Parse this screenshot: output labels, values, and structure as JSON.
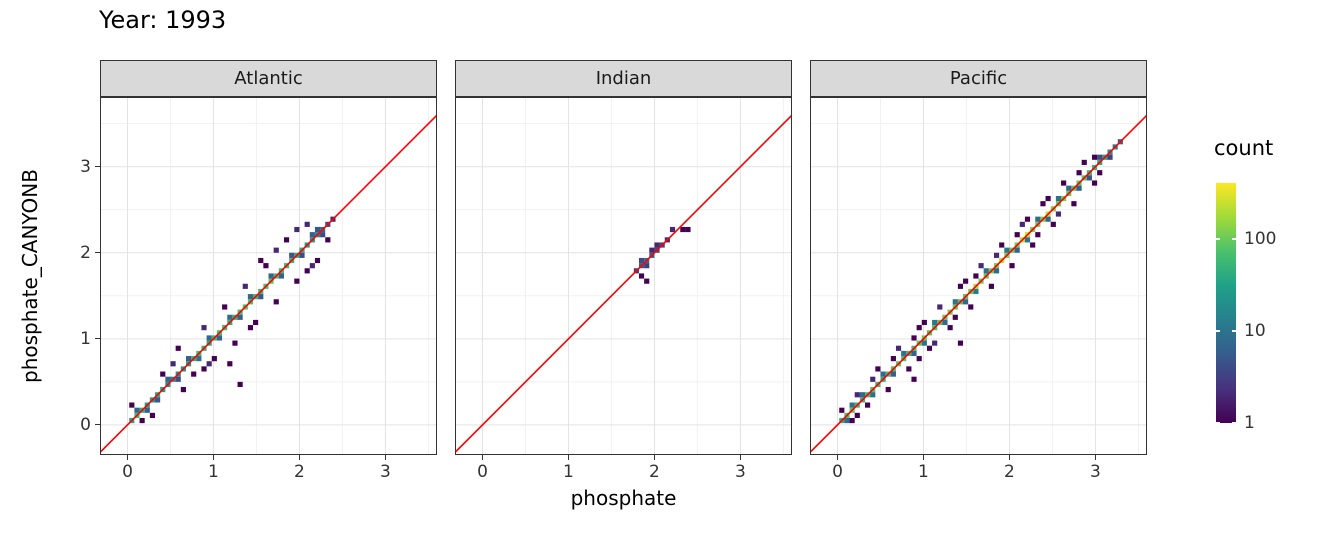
{
  "title": "Year: 1993",
  "chart_data": {
    "type": "heatmap",
    "subtype": "bin2d",
    "title": "Year: 1993",
    "xlabel": "phosphate",
    "ylabel": "phosphate_CANYONB",
    "x_ticks": [
      0,
      1,
      2,
      3
    ],
    "y_ticks": [
      0,
      1,
      2,
      3
    ],
    "x_domain": [
      -0.32,
      3.6
    ],
    "y_domain": [
      -0.35,
      3.81
    ],
    "bin_size": 0.06,
    "grid": true,
    "reference_line": {
      "slope": 1,
      "intercept": 0,
      "color": "#ff0000"
    },
    "legend": {
      "title": "count",
      "ticks": [
        1,
        10,
        100
      ],
      "domain": [
        1,
        400
      ],
      "position": "right",
      "scale": "log10"
    },
    "viridis_stops": [
      "#440154",
      "#46327e",
      "#365c8d",
      "#277f8e",
      "#1fa187",
      "#4ac16d",
      "#a0da39",
      "#fde725"
    ],
    "grid_major_color": "#e3e3e3",
    "grid_minor_color": "#f1f1f1",
    "strip_bg": "#d9d9d9",
    "panel_border": "#333333",
    "facets": [
      {
        "label": "Atlantic",
        "points": [
          [
            0.05,
            0.05,
            35
          ],
          [
            0.11,
            0.11,
            60
          ],
          [
            0.17,
            0.17,
            45
          ],
          [
            0.23,
            0.23,
            30
          ],
          [
            0.29,
            0.29,
            25
          ],
          [
            0.35,
            0.35,
            40
          ],
          [
            0.41,
            0.41,
            30
          ],
          [
            0.47,
            0.47,
            20
          ],
          [
            0.53,
            0.53,
            15
          ],
          [
            0.59,
            0.59,
            18
          ],
          [
            0.65,
            0.65,
            25
          ],
          [
            0.71,
            0.71,
            30
          ],
          [
            0.77,
            0.77,
            45
          ],
          [
            0.83,
            0.83,
            60
          ],
          [
            0.89,
            0.89,
            50
          ],
          [
            0.95,
            0.95,
            40
          ],
          [
            1.01,
            1.01,
            55
          ],
          [
            1.07,
            1.07,
            70
          ],
          [
            1.13,
            1.13,
            60
          ],
          [
            1.19,
            1.19,
            45
          ],
          [
            1.25,
            1.25,
            50
          ],
          [
            1.31,
            1.31,
            65
          ],
          [
            1.37,
            1.37,
            80
          ],
          [
            1.43,
            1.43,
            70
          ],
          [
            1.49,
            1.49,
            55
          ],
          [
            1.55,
            1.55,
            60
          ],
          [
            1.61,
            1.61,
            75
          ],
          [
            1.67,
            1.67,
            85
          ],
          [
            1.73,
            1.73,
            70
          ],
          [
            1.79,
            1.79,
            60
          ],
          [
            1.85,
            1.85,
            60
          ],
          [
            1.91,
            1.91,
            55
          ],
          [
            1.97,
            1.97,
            45
          ],
          [
            2.03,
            2.03,
            40
          ],
          [
            2.09,
            2.09,
            30
          ],
          [
            2.15,
            2.15,
            25
          ],
          [
            2.21,
            2.21,
            15
          ],
          [
            2.27,
            2.27,
            8
          ],
          [
            2.33,
            2.33,
            4
          ],
          [
            2.39,
            2.39,
            2
          ],
          [
            0.11,
            0.17,
            8
          ],
          [
            0.23,
            0.17,
            6
          ],
          [
            0.35,
            0.29,
            5
          ],
          [
            0.47,
            0.53,
            7
          ],
          [
            0.59,
            0.53,
            4
          ],
          [
            0.71,
            0.77,
            6
          ],
          [
            0.83,
            0.77,
            9
          ],
          [
            0.95,
            1.01,
            8
          ],
          [
            1.07,
            1.01,
            7
          ],
          [
            1.19,
            1.25,
            9
          ],
          [
            1.31,
            1.25,
            6
          ],
          [
            1.43,
            1.49,
            8
          ],
          [
            1.55,
            1.49,
            5
          ],
          [
            1.67,
            1.73,
            7
          ],
          [
            1.79,
            1.73,
            6
          ],
          [
            1.91,
            1.97,
            5
          ],
          [
            2.03,
            1.97,
            4
          ],
          [
            2.15,
            2.21,
            6
          ],
          [
            2.21,
            2.27,
            5
          ],
          [
            2.27,
            2.21,
            4
          ],
          [
            0.05,
            0.23,
            1
          ],
          [
            0.17,
            0.05,
            1
          ],
          [
            0.29,
            0.11,
            1
          ],
          [
            0.41,
            0.59,
            1
          ],
          [
            0.53,
            0.71,
            2
          ],
          [
            0.65,
            0.41,
            1
          ],
          [
            0.77,
            0.59,
            1
          ],
          [
            0.89,
            0.65,
            1
          ],
          [
            0.89,
            1.13,
            2
          ],
          [
            1.01,
            0.77,
            1
          ],
          [
            1.13,
            1.37,
            1
          ],
          [
            1.25,
            0.95,
            1
          ],
          [
            1.37,
            1.61,
            2
          ],
          [
            1.49,
            1.19,
            1
          ],
          [
            1.61,
            1.85,
            1
          ],
          [
            1.73,
            1.43,
            1
          ],
          [
            1.73,
            2.03,
            2
          ],
          [
            1.85,
            2.15,
            1
          ],
          [
            1.97,
            1.67,
            1
          ],
          [
            1.97,
            2.27,
            2
          ],
          [
            2.09,
            1.79,
            1
          ],
          [
            2.09,
            2.33,
            2
          ],
          [
            2.21,
            1.91,
            1
          ],
          [
            2.33,
            2.15,
            1
          ],
          [
            1.19,
            0.71,
            1
          ],
          [
            0.59,
            0.89,
            1
          ],
          [
            1.55,
            1.91,
            1
          ],
          [
            2.15,
            1.85,
            2
          ],
          [
            1.43,
            1.13,
            1
          ],
          [
            0.95,
            0.71,
            2
          ],
          [
            1.31,
            0.47,
            1
          ]
        ]
      },
      {
        "label": "Indian",
        "points": [
          [
            1.79,
            1.79,
            3
          ],
          [
            1.85,
            1.85,
            6
          ],
          [
            1.91,
            1.91,
            8
          ],
          [
            1.97,
            1.97,
            6
          ],
          [
            2.03,
            2.03,
            4
          ],
          [
            2.09,
            2.09,
            3
          ],
          [
            2.15,
            2.15,
            2
          ],
          [
            2.21,
            2.27,
            2
          ],
          [
            2.33,
            2.27,
            1
          ],
          [
            1.85,
            1.91,
            4
          ],
          [
            1.91,
            1.85,
            3
          ],
          [
            1.97,
            2.03,
            2
          ],
          [
            1.85,
            1.73,
            1
          ],
          [
            1.91,
            1.67,
            1
          ],
          [
            2.03,
            2.09,
            2
          ],
          [
            2.39,
            2.27,
            1
          ]
        ]
      },
      {
        "label": "Pacific",
        "points": [
          [
            0.05,
            0.05,
            45
          ],
          [
            0.11,
            0.11,
            70
          ],
          [
            0.17,
            0.17,
            90
          ],
          [
            0.23,
            0.23,
            60
          ],
          [
            0.29,
            0.29,
            50
          ],
          [
            0.35,
            0.35,
            65
          ],
          [
            0.41,
            0.41,
            80
          ],
          [
            0.47,
            0.47,
            55
          ],
          [
            0.53,
            0.53,
            45
          ],
          [
            0.59,
            0.59,
            60
          ],
          [
            0.65,
            0.65,
            75
          ],
          [
            0.71,
            0.71,
            90
          ],
          [
            0.77,
            0.77,
            70
          ],
          [
            0.83,
            0.83,
            55
          ],
          [
            0.89,
            0.89,
            65
          ],
          [
            0.95,
            0.95,
            85
          ],
          [
            1.01,
            1.01,
            100
          ],
          [
            1.07,
            1.07,
            80
          ],
          [
            1.13,
            1.13,
            70
          ],
          [
            1.19,
            1.19,
            85
          ],
          [
            1.25,
            1.25,
            95
          ],
          [
            1.31,
            1.31,
            110
          ],
          [
            1.37,
            1.37,
            90
          ],
          [
            1.43,
            1.43,
            75
          ],
          [
            1.49,
            1.49,
            85
          ],
          [
            1.55,
            1.55,
            100
          ],
          [
            1.61,
            1.61,
            200
          ],
          [
            1.67,
            1.67,
            110
          ],
          [
            1.73,
            1.73,
            95
          ],
          [
            1.79,
            1.79,
            105
          ],
          [
            1.85,
            1.85,
            120
          ],
          [
            1.91,
            1.91,
            220
          ],
          [
            1.97,
            1.97,
            115
          ],
          [
            2.03,
            2.03,
            100
          ],
          [
            2.09,
            2.09,
            110
          ],
          [
            2.15,
            2.15,
            210
          ],
          [
            2.21,
            2.21,
            260
          ],
          [
            2.27,
            2.27,
            120
          ],
          [
            2.33,
            2.33,
            105
          ],
          [
            2.39,
            2.39,
            115
          ],
          [
            2.45,
            2.45,
            240
          ],
          [
            2.51,
            2.51,
            120
          ],
          [
            2.57,
            2.57,
            100
          ],
          [
            2.63,
            2.63,
            110
          ],
          [
            2.69,
            2.69,
            95
          ],
          [
            2.75,
            2.75,
            85
          ],
          [
            2.81,
            2.81,
            90
          ],
          [
            2.87,
            2.87,
            75
          ],
          [
            2.93,
            2.93,
            60
          ],
          [
            2.99,
            2.99,
            50
          ],
          [
            3.05,
            3.05,
            40
          ],
          [
            3.11,
            3.11,
            30
          ],
          [
            3.17,
            3.17,
            20
          ],
          [
            3.23,
            3.23,
            12
          ],
          [
            3.29,
            3.29,
            6
          ],
          [
            0.11,
            0.05,
            8
          ],
          [
            0.17,
            0.23,
            10
          ],
          [
            0.29,
            0.35,
            7
          ],
          [
            0.41,
            0.35,
            9
          ],
          [
            0.53,
            0.59,
            8
          ],
          [
            0.65,
            0.59,
            6
          ],
          [
            0.77,
            0.83,
            10
          ],
          [
            0.89,
            0.83,
            7
          ],
          [
            1.01,
            0.95,
            9
          ],
          [
            1.13,
            1.19,
            11
          ],
          [
            1.25,
            1.19,
            8
          ],
          [
            1.37,
            1.43,
            10
          ],
          [
            1.49,
            1.43,
            7
          ],
          [
            1.61,
            1.55,
            12
          ],
          [
            1.73,
            1.79,
            9
          ],
          [
            1.85,
            1.79,
            8
          ],
          [
            1.97,
            2.03,
            11
          ],
          [
            2.09,
            2.03,
            7
          ],
          [
            2.21,
            2.15,
            10
          ],
          [
            2.33,
            2.39,
            9
          ],
          [
            2.45,
            2.39,
            8
          ],
          [
            2.57,
            2.63,
            10
          ],
          [
            2.69,
            2.75,
            7
          ],
          [
            2.81,
            2.75,
            6
          ],
          [
            2.93,
            2.87,
            5
          ],
          [
            3.05,
            3.11,
            4
          ],
          [
            3.17,
            3.11,
            3
          ],
          [
            0.05,
            0.17,
            1
          ],
          [
            0.17,
            0.05,
            1
          ],
          [
            0.23,
            0.35,
            2
          ],
          [
            0.35,
            0.23,
            1
          ],
          [
            0.47,
            0.65,
            1
          ],
          [
            0.59,
            0.41,
            1
          ],
          [
            0.71,
            0.89,
            2
          ],
          [
            0.83,
            0.65,
            1
          ],
          [
            0.95,
            1.13,
            1
          ],
          [
            1.07,
            0.89,
            1
          ],
          [
            1.19,
            1.37,
            2
          ],
          [
            1.31,
            1.13,
            1
          ],
          [
            1.43,
            1.61,
            1
          ],
          [
            1.55,
            1.37,
            1
          ],
          [
            1.67,
            1.85,
            2
          ],
          [
            1.79,
            1.61,
            1
          ],
          [
            1.91,
            2.09,
            1
          ],
          [
            2.03,
            1.85,
            1
          ],
          [
            2.15,
            2.33,
            2
          ],
          [
            2.27,
            2.09,
            1
          ],
          [
            2.39,
            2.57,
            1
          ],
          [
            2.51,
            2.33,
            1
          ],
          [
            2.63,
            2.81,
            1
          ],
          [
            2.75,
            2.57,
            1
          ],
          [
            2.87,
            3.05,
            1
          ],
          [
            2.99,
            2.81,
            1
          ],
          [
            0.41,
            0.53,
            2
          ],
          [
            0.65,
            0.77,
            1
          ],
          [
            0.89,
            1.01,
            1
          ],
          [
            1.13,
            0.95,
            2
          ],
          [
            1.37,
            1.25,
            1
          ],
          [
            1.61,
            1.73,
            1
          ],
          [
            1.85,
            1.97,
            2
          ],
          [
            2.09,
            2.21,
            1
          ],
          [
            2.33,
            2.21,
            1
          ],
          [
            2.57,
            2.45,
            2
          ],
          [
            2.81,
            2.93,
            1
          ],
          [
            3.05,
            2.93,
            1
          ],
          [
            0.23,
            0.11,
            1
          ],
          [
            0.95,
            0.77,
            1
          ],
          [
            1.49,
            1.67,
            1
          ],
          [
            2.45,
            2.63,
            1
          ],
          [
            2.99,
            3.11,
            1
          ],
          [
            1.01,
            1.19,
            1
          ],
          [
            2.21,
            2.39,
            1
          ],
          [
            1.43,
            0.95,
            1
          ],
          [
            0.89,
            0.53,
            1
          ]
        ]
      }
    ]
  }
}
